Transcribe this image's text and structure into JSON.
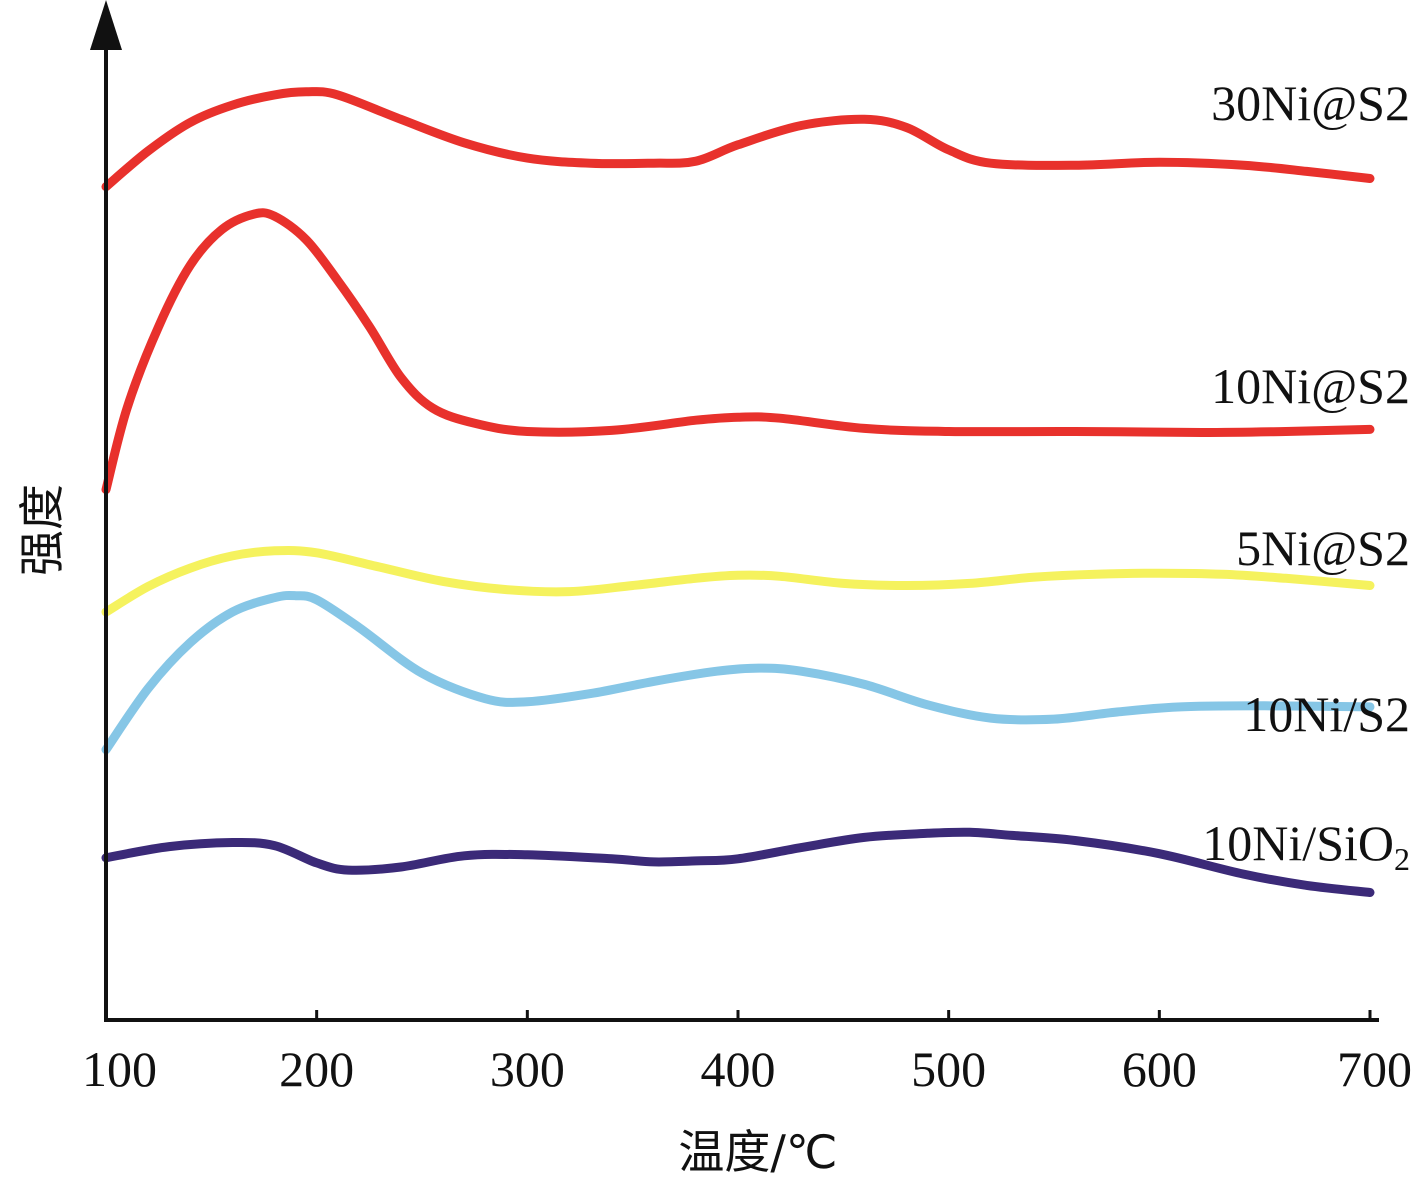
{
  "chart_data": {
    "type": "line",
    "xlabel": "温度/℃",
    "ylabel": "强度",
    "xlim": [
      100,
      700
    ],
    "xticks": [
      100,
      200,
      300,
      400,
      500,
      600,
      700
    ],
    "yticks_shown": false,
    "y_arbitrary_units": true,
    "ylim": [
      0,
      100
    ],
    "grid": false,
    "legend": "inline labels at right end of each curve",
    "series": [
      {
        "name": "30Ni@S2",
        "color": "#e8312c",
        "x": [
          100,
          120,
          140,
          160,
          180,
          195,
          210,
          240,
          270,
          300,
          330,
          360,
          380,
          400,
          430,
          460,
          480,
          500,
          520,
          560,
          600,
          640,
          670,
          700
        ],
        "y": [
          81.7,
          85.2,
          88.0,
          89.7,
          90.7,
          91.0,
          90.7,
          88.3,
          86.0,
          84.5,
          84.0,
          84.0,
          84.2,
          85.8,
          87.7,
          88.3,
          87.5,
          85.3,
          84.0,
          83.8,
          84.1,
          83.8,
          83.2,
          82.5
        ]
      },
      {
        "name": "10Ni@S2",
        "color": "#e8312c",
        "x": [
          100,
          110,
          125,
          140,
          155,
          170,
          180,
          195,
          210,
          225,
          240,
          255,
          275,
          300,
          340,
          380,
          400,
          420,
          460,
          500,
          560,
          620,
          660,
          700
        ],
        "y": [
          52.0,
          60.0,
          68.0,
          74.0,
          77.5,
          79.0,
          78.8,
          76.5,
          72.5,
          68.0,
          63.0,
          60.0,
          58.5,
          57.7,
          57.8,
          58.8,
          59.1,
          59.0,
          58.0,
          57.7,
          57.7,
          57.6,
          57.7,
          57.9
        ]
      },
      {
        "name": "5Ni@S2",
        "color": "#f5f25e",
        "x": [
          100,
          120,
          140,
          160,
          180,
          200,
          230,
          260,
          290,
          320,
          350,
          380,
          400,
          420,
          450,
          480,
          510,
          540,
          570,
          600,
          630,
          660,
          700
        ],
        "y": [
          40.0,
          42.5,
          44.3,
          45.5,
          46.0,
          45.8,
          44.4,
          43.0,
          42.2,
          42.0,
          42.6,
          43.3,
          43.6,
          43.5,
          42.8,
          42.6,
          42.8,
          43.4,
          43.7,
          43.8,
          43.7,
          43.3,
          42.6
        ]
      },
      {
        "name": "10Ni/S2",
        "color": "#86c6e6",
        "x": [
          100,
          120,
          140,
          160,
          180,
          190,
          200,
          220,
          250,
          280,
          300,
          330,
          360,
          390,
          410,
          430,
          460,
          490,
          520,
          550,
          580,
          610,
          650,
          700
        ],
        "y": [
          26.5,
          32.5,
          37.0,
          40.0,
          41.4,
          41.6,
          41.2,
          38.5,
          34.0,
          31.5,
          31.2,
          32.0,
          33.2,
          34.2,
          34.5,
          34.2,
          32.9,
          30.9,
          29.6,
          29.5,
          30.2,
          30.7,
          30.8,
          30.7
        ]
      },
      {
        "name": "10Ni/SiO",
        "name_subscript": "2",
        "color": "#3b2a78",
        "x": [
          100,
          130,
          160,
          180,
          200,
          215,
          240,
          270,
          300,
          340,
          360,
          380,
          400,
          430,
          460,
          490,
          510,
          530,
          560,
          600,
          640,
          670,
          700
        ],
        "y": [
          15.9,
          17.0,
          17.4,
          17.1,
          15.4,
          14.7,
          15.0,
          16.1,
          16.2,
          15.8,
          15.5,
          15.6,
          15.8,
          16.9,
          17.9,
          18.3,
          18.4,
          18.1,
          17.6,
          16.3,
          14.3,
          13.2,
          12.5
        ]
      }
    ]
  }
}
